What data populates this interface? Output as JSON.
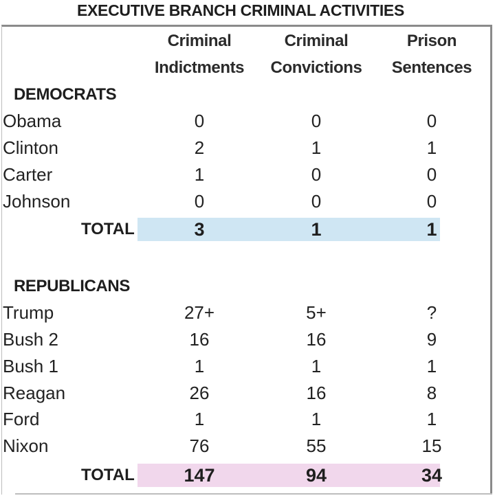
{
  "title": "EXECUTIVE BRANCH CRIMINAL ACTIVITIES",
  "columns": [
    {
      "line1": "Criminal",
      "line2": "Indictments"
    },
    {
      "line1": "Criminal",
      "line2": "Convictions"
    },
    {
      "line1": "Prison",
      "line2": "Sentences"
    }
  ],
  "colors": {
    "democrat_total_bar": "#cfe6f3",
    "republican_total_bar": "#f1d7ec"
  },
  "democrats": {
    "heading": "DEMOCRATS",
    "rows": [
      {
        "name": "Obama",
        "values": [
          "0",
          "0",
          "0"
        ]
      },
      {
        "name": "Clinton",
        "values": [
          "2",
          "1",
          "1"
        ]
      },
      {
        "name": "Carter",
        "values": [
          "1",
          "0",
          "0"
        ]
      },
      {
        "name": "Johnson",
        "values": [
          "0",
          "0",
          "0"
        ]
      }
    ],
    "total": {
      "label": "TOTAL",
      "values": [
        "3",
        "1",
        "1"
      ]
    }
  },
  "republicans": {
    "heading": "REPUBLICANS",
    "rows": [
      {
        "name": "Trump",
        "values": [
          "27+",
          "5+",
          "?"
        ]
      },
      {
        "name": "Bush 2",
        "values": [
          "16",
          "16",
          "9"
        ]
      },
      {
        "name": "Bush 1",
        "values": [
          "1",
          "1",
          "1"
        ]
      },
      {
        "name": "Reagan",
        "values": [
          "26",
          "16",
          "8"
        ]
      },
      {
        "name": "Ford",
        "values": [
          "1",
          "1",
          "1"
        ]
      },
      {
        "name": "Nixon",
        "values": [
          "76",
          "55",
          "15"
        ]
      }
    ],
    "total": {
      "label": "TOTAL",
      "values": [
        "147",
        "94",
        "34"
      ]
    }
  }
}
